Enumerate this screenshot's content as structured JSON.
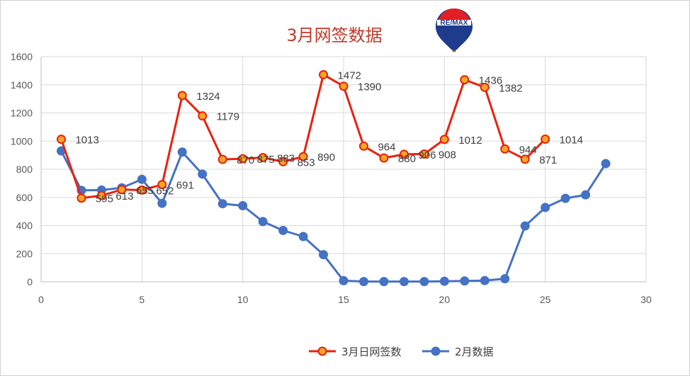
{
  "chart_data": {
    "type": "scatter",
    "title": "3月网签数据",
    "xlabel": "",
    "ylabel": "",
    "xlim": [
      0,
      30
    ],
    "ylim": [
      0,
      1600
    ],
    "xticks": [
      "0",
      "5",
      "10",
      "15",
      "20",
      "25",
      "30"
    ],
    "yticks": [
      "0",
      "200",
      "400",
      "600",
      "800",
      "1000",
      "1200",
      "1400",
      "1600"
    ],
    "grid": true,
    "legend_position": "bottom-right",
    "series": [
      {
        "name": "3月日网签数",
        "color": "#e8220f",
        "marker_fill": "#f5a623",
        "x": [
          1,
          2,
          3,
          4,
          5,
          6,
          7,
          8,
          9,
          10,
          11,
          12,
          13,
          14,
          15,
          16,
          17,
          18,
          19,
          20,
          21,
          22,
          23,
          24,
          25
        ],
        "y": [
          1013,
          595,
          613,
          655,
          652,
          691,
          1324,
          1179,
          870,
          875,
          883,
          853,
          890,
          1472,
          1390,
          964,
          880,
          906,
          908,
          1012,
          1436,
          1382,
          944,
          871,
          1014
        ],
        "labels": [
          "1013",
          "595",
          "613",
          "655",
          "652",
          "691",
          "1324",
          "1179",
          "870",
          "875",
          "883",
          "853",
          "890",
          "1472",
          "1390",
          "964",
          "880",
          "906",
          "908",
          "1012",
          "1436",
          "1382",
          "944",
          "871",
          "1014"
        ]
      },
      {
        "name": "2月数据",
        "color": "#4472c4",
        "marker_fill": "#4472c4",
        "x": [
          1,
          2,
          3,
          4,
          5,
          6,
          7,
          8,
          9,
          10,
          11,
          12,
          13,
          14,
          15,
          16,
          17,
          18,
          19,
          20,
          21,
          22,
          23,
          24,
          25,
          26,
          27,
          28
        ],
        "y": [
          930,
          650,
          652,
          668,
          728,
          558,
          922,
          765,
          555,
          541,
          428,
          365,
          322,
          193,
          8,
          2,
          2,
          2,
          2,
          4,
          6,
          9,
          22,
          397,
          528,
          593,
          618,
          840
        ]
      }
    ]
  },
  "logo": {
    "name": "remax-balloon-logo",
    "text": "RE/MAX"
  }
}
